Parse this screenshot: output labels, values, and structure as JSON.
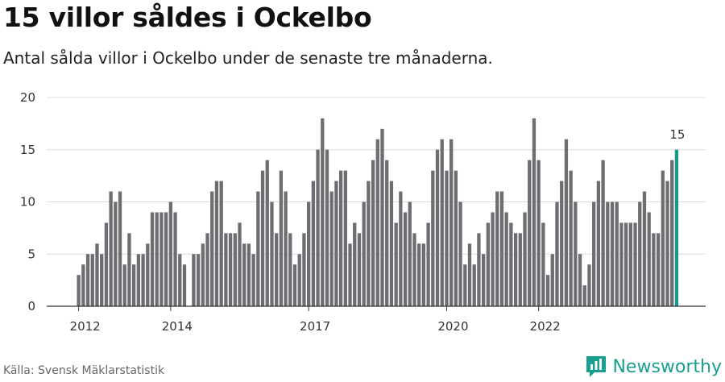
{
  "title": "15 villor såldes i Ockelbo",
  "subtitle": "Antal sålda villor i Ockelbo under de senaste tre månaderna.",
  "source": "Källa: Svensk Mäklarstatistik",
  "brand": {
    "name": "Newsworthy",
    "color": "#1a9e8f",
    "icon": "bar-chart-logo-icon"
  },
  "colors": {
    "bar": "#6e6d72",
    "highlight": "#16998a",
    "grid": "#dcdcdc",
    "axis": "#333333"
  },
  "chart_data": {
    "type": "bar",
    "title": "",
    "xlabel": "",
    "ylabel": "",
    "ylim": [
      0,
      20
    ],
    "yticks": [
      0,
      5,
      10,
      15,
      20
    ],
    "xtick_labels": [
      "2012",
      "2014",
      "2017",
      "2020",
      "2022"
    ],
    "xtick_positions": [
      0,
      20,
      50,
      80,
      100
    ],
    "values": [
      3,
      4,
      5,
      5,
      6,
      5,
      8,
      11,
      10,
      11,
      4,
      7,
      4,
      5,
      5,
      6,
      9,
      9,
      9,
      9,
      10,
      9,
      5,
      4,
      0,
      5,
      5,
      6,
      7,
      11,
      12,
      12,
      7,
      7,
      7,
      8,
      6,
      6,
      5,
      11,
      13,
      14,
      10,
      7,
      13,
      11,
      7,
      4,
      5,
      7,
      10,
      12,
      15,
      18,
      15,
      11,
      12,
      13,
      13,
      6,
      8,
      7,
      10,
      12,
      14,
      16,
      17,
      14,
      12,
      8,
      11,
      9,
      10,
      7,
      6,
      6,
      8,
      13,
      15,
      16,
      13,
      16,
      13,
      10,
      4,
      6,
      4,
      7,
      5,
      8,
      9,
      11,
      11,
      9,
      8,
      7,
      7,
      9,
      14,
      18,
      14,
      8,
      3,
      5,
      10,
      12,
      16,
      13,
      10,
      5,
      2,
      4,
      10,
      12,
      14,
      10,
      10,
      10,
      8,
      8,
      8,
      8,
      10,
      11,
      9,
      7,
      7,
      13,
      12,
      14,
      15
    ],
    "highlight_index": 130,
    "highlight_label": "15"
  }
}
